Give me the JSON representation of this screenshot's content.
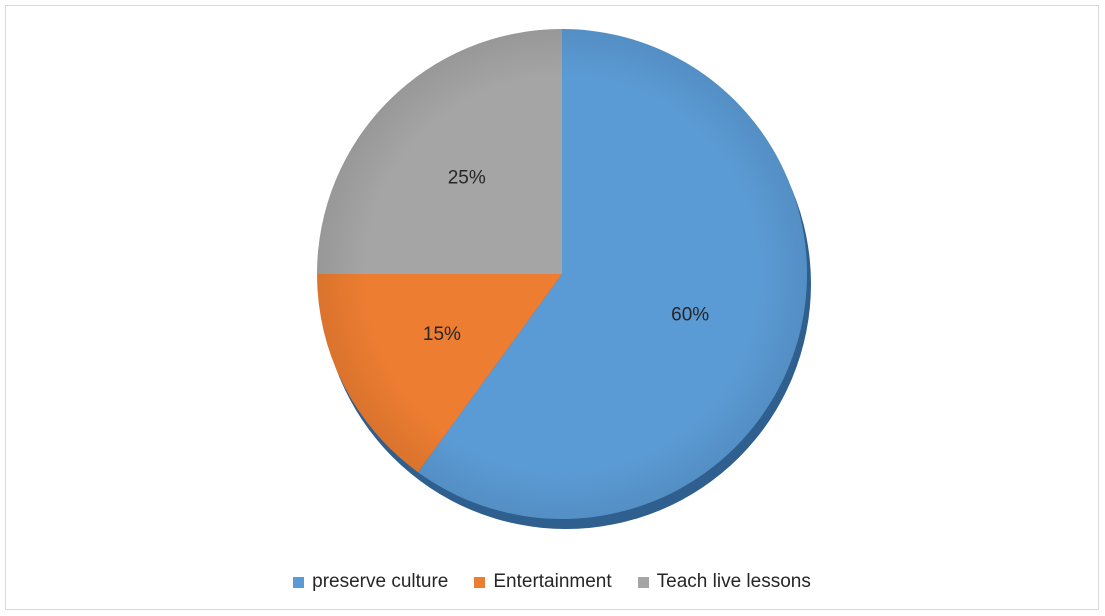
{
  "chart_data": {
    "type": "pie",
    "title": "",
    "start_angle_deg": 0,
    "direction": "clockwise",
    "legend_position": "bottom",
    "slices": [
      {
        "label": "preserve culture",
        "value": 60,
        "data_label": "60%",
        "color": "#5b9bd5"
      },
      {
        "label": "Entertainment",
        "value": 15,
        "data_label": "15%",
        "color": "#ed7d31"
      },
      {
        "label": "Teach live lessons",
        "value": 25,
        "data_label": "25%",
        "color": "#a5a5a5"
      }
    ]
  }
}
